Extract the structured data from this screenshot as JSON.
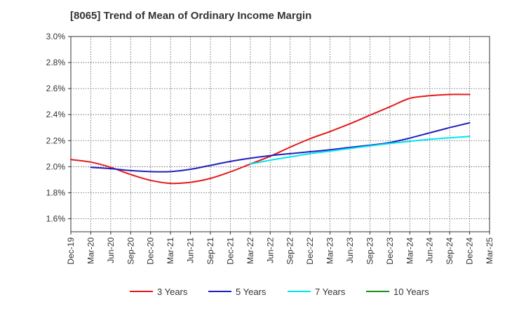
{
  "chart_data": {
    "type": "line",
    "title": "[8065]  Trend of Mean of Ordinary Income Margin",
    "xlabel": "",
    "ylabel": "",
    "x": [
      "Dec-19",
      "Mar-20",
      "Jun-20",
      "Sep-20",
      "Dec-20",
      "Mar-21",
      "Jun-21",
      "Sep-21",
      "Dec-21",
      "Mar-22",
      "Jun-22",
      "Sep-22",
      "Dec-22",
      "Mar-23",
      "Jun-23",
      "Sep-23",
      "Dec-23",
      "Mar-24",
      "Jun-24",
      "Sep-24",
      "Dec-24",
      "Mar-25"
    ],
    "y_ticks": [
      "1.6%",
      "1.8%",
      "2.0%",
      "2.2%",
      "2.4%",
      "2.6%",
      "2.8%",
      "3.0%"
    ],
    "ylim": [
      1.5,
      3.0
    ],
    "y_unit": "%",
    "grid": true,
    "legend_position": "bottom",
    "series": [
      {
        "name": "3 Years",
        "color": "#e41a1c",
        "values": [
          2.055,
          2.035,
          1.995,
          1.94,
          1.895,
          1.872,
          1.88,
          1.91,
          1.96,
          2.02,
          2.08,
          2.15,
          2.215,
          2.27,
          2.33,
          2.395,
          2.46,
          2.525,
          2.545,
          2.555,
          2.555,
          null
        ]
      },
      {
        "name": "5 Years",
        "color": "#1f1fbf",
        "values": [
          null,
          1.995,
          1.985,
          1.97,
          1.962,
          1.962,
          1.98,
          2.01,
          2.04,
          2.065,
          2.085,
          2.1,
          2.115,
          2.13,
          2.148,
          2.165,
          2.185,
          2.22,
          2.26,
          2.3,
          2.337,
          null
        ]
      },
      {
        "name": "7 Years",
        "color": "#00e5ee",
        "values": [
          null,
          null,
          null,
          null,
          null,
          null,
          null,
          null,
          null,
          2.02,
          2.05,
          2.075,
          2.1,
          2.12,
          2.14,
          2.16,
          2.178,
          2.195,
          2.21,
          2.222,
          2.232,
          null
        ]
      },
      {
        "name": "10 Years",
        "color": "#228b22",
        "values": [
          null,
          null,
          null,
          null,
          null,
          null,
          null,
          null,
          null,
          null,
          null,
          null,
          null,
          null,
          null,
          null,
          null,
          null,
          null,
          null,
          null,
          null
        ]
      }
    ]
  }
}
